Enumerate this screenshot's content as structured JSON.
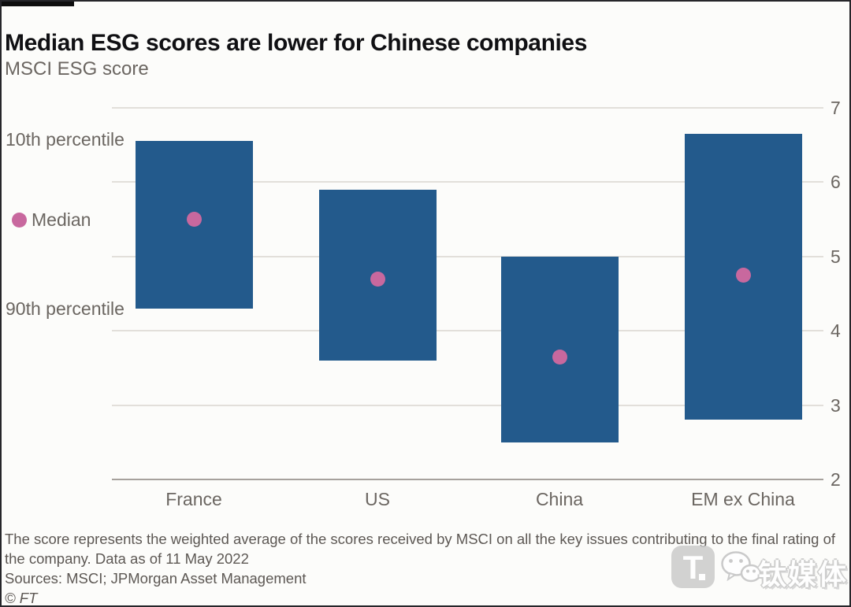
{
  "page": {
    "title": "Median ESG scores are lower for Chinese companies",
    "subtitle": "MSCI ESG score",
    "footnote_lines": [
      "The score represents the weighted average of the scores received by MSCI on all the key issues contributing to the final rating of",
      "the company. Data as of 11 May 2022"
    ],
    "sources": "Sources: MSCI; JPMorgan Asset Management",
    "copyright": "© FT",
    "watermark": {
      "brand_text": "钛媒体",
      "logo_letter": "T"
    }
  },
  "chart_data": {
    "type": "bar",
    "subtype": "range",
    "title": "Median ESG scores are lower for Chinese companies",
    "subtitle": "MSCI ESG score",
    "categories": [
      "France",
      "US",
      "China",
      "EM ex China"
    ],
    "series": [
      {
        "name": "10th percentile",
        "values": [
          6.55,
          5.9,
          5.0,
          6.65
        ]
      },
      {
        "name": "90th percentile",
        "values": [
          4.3,
          3.6,
          2.5,
          2.8
        ]
      },
      {
        "name": "Median",
        "values": [
          5.5,
          4.7,
          3.65,
          4.75
        ]
      }
    ],
    "ylim": [
      2,
      7
    ],
    "yticks": [
      7,
      6,
      5,
      4,
      3,
      2
    ],
    "axis_side": "right",
    "grid": true,
    "legend_position": "left",
    "annotations": {
      "top": "10th percentile",
      "mid": "Median",
      "bottom": "90th percentile"
    },
    "colors": {
      "bar": "#235a8c",
      "median": "#c8689e"
    }
  }
}
